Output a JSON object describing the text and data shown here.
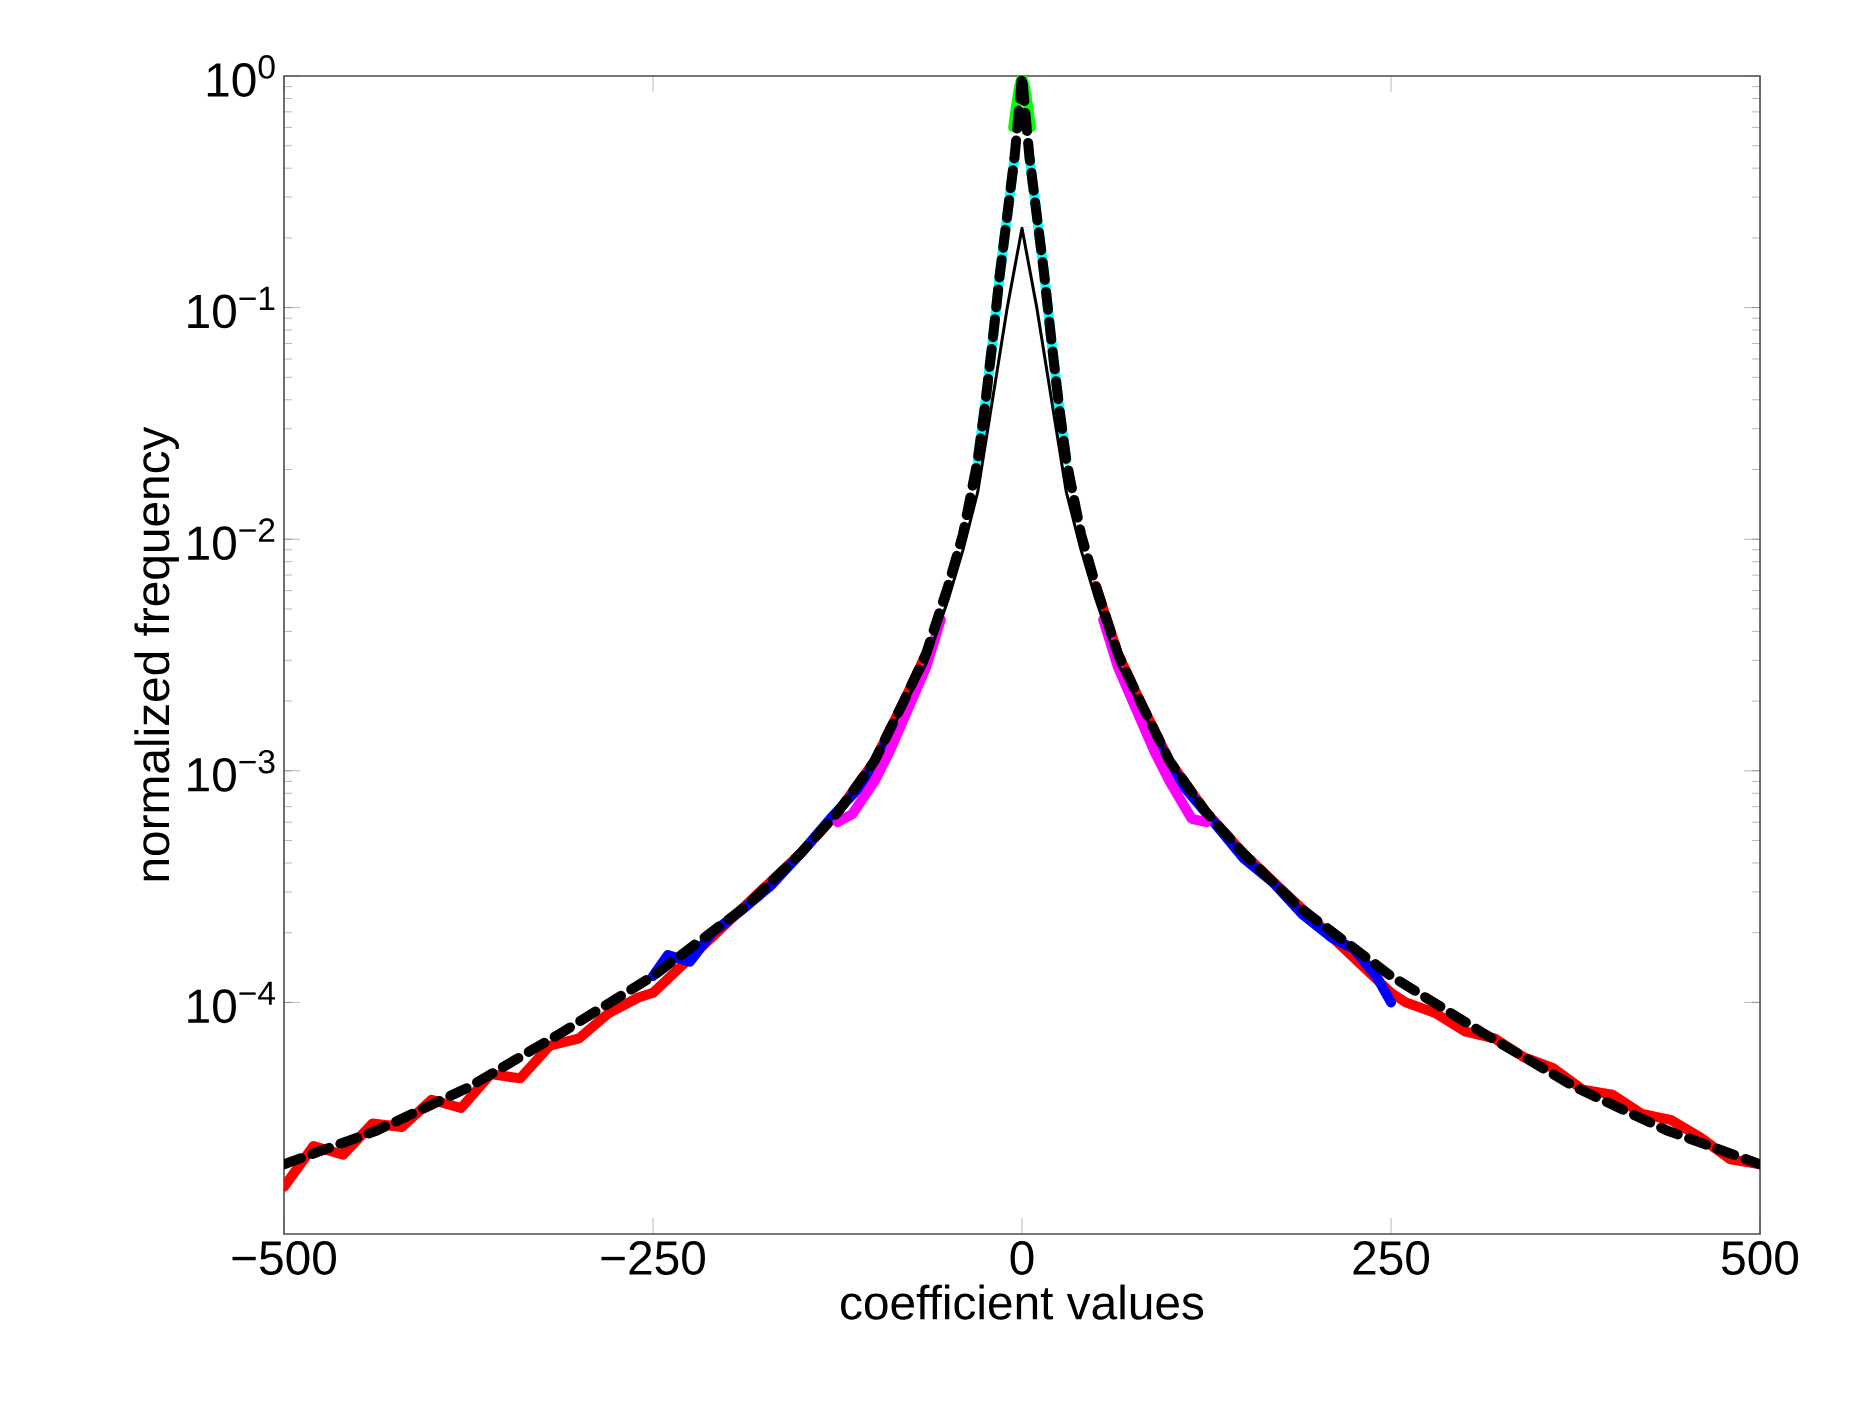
{
  "chart_data": {
    "type": "line",
    "xlabel": "coefficient values",
    "ylabel": "normalized frequency",
    "log": "y",
    "xlim": [
      -500,
      500
    ],
    "ylim": [
      1e-05,
      1
    ],
    "xticks": [
      {
        "value": -500,
        "label": "−500"
      },
      {
        "value": -250,
        "label": "−250"
      },
      0,
      250,
      500
    ],
    "yticks": [
      {
        "value": 0.0001,
        "label": "10$^{−4}$"
      },
      {
        "value": 0.001,
        "label": "10$^{−3}$"
      },
      {
        "value": 0.01,
        "label": "10$^{−2}$"
      },
      {
        "value": 0.1,
        "label": "10$^{−1}$"
      },
      {
        "value": 1,
        "label": "10$^{0}$"
      }
    ],
    "marker": "none",
    "series": [
      {
        "color": "#ff0000",
        "x": [
          -500,
          -480,
          -460,
          -440,
          -420,
          -400,
          -380,
          -360,
          -340,
          -320,
          -300,
          -280,
          -260,
          -250,
          -200,
          -150,
          -125,
          -100,
          -80,
          -65,
          -50,
          0,
          50,
          65,
          80,
          100,
          125,
          150,
          200,
          250,
          260,
          280,
          300,
          320,
          340,
          360,
          380,
          400,
          420,
          440,
          460,
          480,
          500
        ],
        "values": [
          1.6e-05,
          2.4e-05,
          2.2e-05,
          3e-05,
          2.9e-05,
          3.8e-05,
          3.5e-05,
          4.9e-05,
          4.7e-05,
          6.5e-05,
          7e-05,
          9e-05,
          0.000105,
          0.00011,
          0.00022,
          0.00044,
          0.00066,
          0.0011,
          0.002,
          0.0032,
          null,
          null,
          0.0063,
          0.0032,
          0.002,
          0.0011,
          0.00066,
          0.00044,
          0.00022,
          0.00011,
          0.0001,
          9e-05,
          7.5e-05,
          7e-05,
          5.8e-05,
          5.2e-05,
          4.2e-05,
          4e-05,
          3.3e-05,
          3.1e-05,
          2.6e-05,
          2.1e-05,
          2e-05
        ]
      },
      {
        "color": "#0000ff",
        "x": [
          -250,
          -240,
          -225,
          -210,
          -190,
          -170,
          -150,
          -130,
          -110,
          -90,
          -70,
          0,
          70,
          90,
          110,
          130,
          150,
          170,
          190,
          210,
          225,
          240,
          250
        ],
        "values": [
          0.00013,
          0.00016,
          0.00015,
          0.0002,
          0.00025,
          0.00032,
          0.00044,
          0.00062,
          0.00085,
          0.0014,
          null,
          null,
          null,
          0.0014,
          0.00085,
          0.0006,
          0.00042,
          0.00033,
          0.00024,
          0.00019,
          0.00017,
          0.00013,
          0.0001
        ]
      },
      {
        "color": "#ff00ff",
        "x": [
          -125,
          -115,
          -100,
          -90,
          -78,
          -65,
          -55,
          0,
          55,
          65,
          78,
          90,
          100,
          115,
          125
        ],
        "values": [
          0.0006,
          0.00065,
          0.0009,
          0.0012,
          0.0018,
          0.0028,
          0.0045,
          null,
          0.0045,
          0.0028,
          0.0018,
          0.0012,
          0.0009,
          0.00062,
          0.0006
        ]
      },
      {
        "color": "#00ffff",
        "x": [
          -30,
          -25,
          -20,
          -15,
          -10,
          -5,
          0,
          5,
          10,
          15,
          20,
          25,
          30
        ],
        "values": [
          0.022,
          0.038,
          0.071,
          0.14,
          0.25,
          0.45,
          null,
          0.45,
          0.25,
          0.14,
          0.071,
          0.038,
          0.022
        ]
      },
      {
        "color": "#00ff00",
        "x": [
          -6,
          -4,
          -2,
          0,
          2,
          4,
          6
        ],
        "values": [
          0.6,
          0.75,
          0.9,
          1,
          0.9,
          0.75,
          0.6
        ]
      },
      {
        "color": "#000000",
        "x": [
          -125,
          -100,
          -80,
          -65,
          -50,
          -40,
          -30,
          -20,
          -10,
          0,
          10,
          20,
          30,
          40,
          50,
          65,
          80,
          100,
          125
        ],
        "values": [
          0.00065,
          0.0011,
          0.0019,
          0.0029,
          0.0055,
          0.009,
          0.016,
          0.04,
          0.1,
          0.22,
          0.1,
          0.04,
          0.016,
          0.009,
          0.0055,
          0.0029,
          0.0019,
          0.0011,
          0.00065
        ]
      },
      {
        "color": "#000000",
        "line_style": "dashed",
        "x": [
          -500,
          -437,
          -375,
          -312,
          -250,
          -187,
          -150,
          -125,
          -100,
          -80,
          -65,
          -50,
          -40,
          -30,
          -25,
          -20,
          -15,
          -10,
          -5,
          0,
          5,
          10,
          15,
          20,
          25,
          30,
          40,
          50,
          65,
          80,
          100,
          125,
          150,
          187,
          250,
          312,
          375,
          437,
          500
        ],
        "values": [
          2e-05,
          2.8e-05,
          4.3e-05,
          7.4e-05,
          0.00013,
          0.00026,
          0.00044,
          0.00066,
          0.0011,
          0.002,
          0.0032,
          0.0063,
          0.0105,
          0.022,
          0.038,
          0.071,
          0.14,
          0.25,
          0.45,
          1,
          0.45,
          0.25,
          0.14,
          0.071,
          0.038,
          0.022,
          0.0105,
          0.0063,
          0.0032,
          0.002,
          0.0011,
          0.00066,
          0.00044,
          0.00026,
          0.00013,
          7.4e-05,
          4.3e-05,
          2.8e-05,
          2e-05
        ]
      }
    ]
  }
}
